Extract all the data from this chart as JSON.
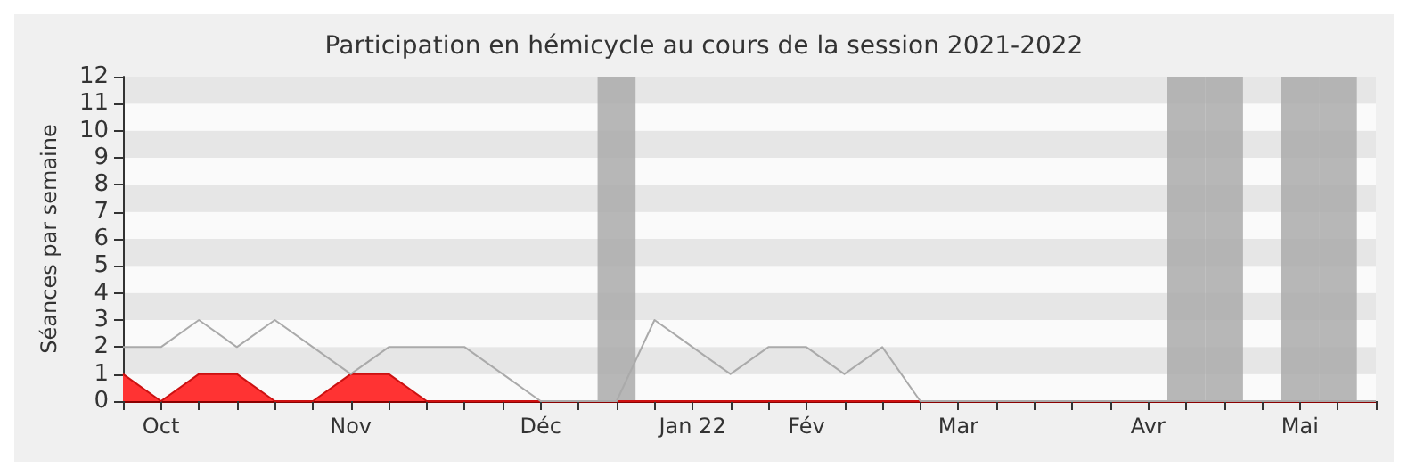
{
  "chart_data": {
    "type": "line",
    "title": "Participation en hémicycle au cours de la session 2021-2022",
    "ylabel": "Séances par semaine",
    "categories": [
      null,
      "Oct",
      null,
      null,
      null,
      null,
      "Nov",
      null,
      null,
      null,
      null,
      "Déc",
      null,
      null,
      null,
      "Jan 22",
      null,
      null,
      "Fév",
      null,
      null,
      null,
      "Mar",
      null,
      null,
      null,
      null,
      "Avr",
      null,
      null,
      null,
      "Mai",
      null,
      null
    ],
    "series": [
      {
        "type": "bar",
        "color": "#aaaaaa",
        "values": [
          null,
          null,
          null,
          null,
          null,
          null,
          null,
          null,
          null,
          null,
          null,
          null,
          null,
          12,
          null,
          null,
          null,
          null,
          null,
          null,
          null,
          null,
          null,
          null,
          null,
          null,
          null,
          null,
          12,
          12,
          null,
          12,
          12,
          null
        ]
      },
      {
        "type": "area",
        "color": "#ff3333",
        "values": [
          1,
          0,
          1,
          1,
          0,
          0,
          1,
          1,
          0,
          0,
          0,
          0,
          0,
          0,
          0,
          0,
          0,
          0,
          0,
          0,
          0,
          0,
          0,
          0,
          0,
          0,
          0,
          0,
          0,
          0,
          0,
          0,
          0,
          0
        ]
      },
      {
        "color": "#aaaaaa",
        "values": [
          2,
          2,
          3,
          2,
          3,
          2,
          1,
          2,
          2,
          2,
          1,
          0,
          0,
          0,
          3,
          2,
          1,
          2,
          2,
          1,
          2,
          0,
          0,
          0,
          0,
          0,
          0,
          0,
          0,
          0,
          0,
          0,
          0,
          0
        ]
      }
    ],
    "ylim": [
      0,
      12
    ],
    "yticks": [
      0,
      1,
      2,
      3,
      4,
      5,
      6,
      7,
      8,
      9,
      10,
      11,
      12
    ],
    "marker": "none",
    "line_style": "solid"
  }
}
